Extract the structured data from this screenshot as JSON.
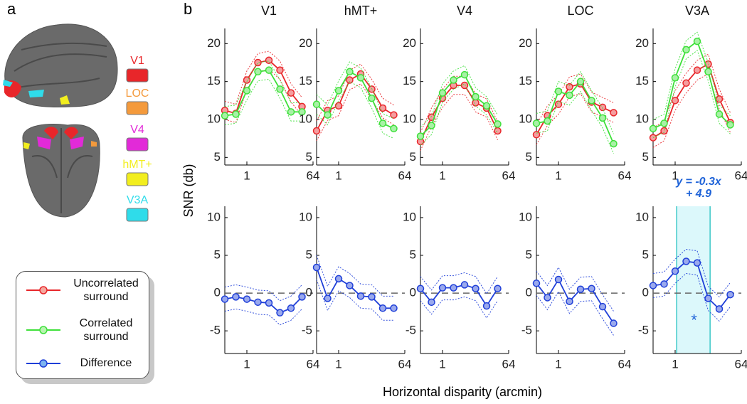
{
  "panel_a": {
    "label": "a",
    "rois": [
      {
        "name": "V1",
        "color": "#e8262a"
      },
      {
        "name": "LOC",
        "color": "#f49a3c"
      },
      {
        "name": "V4",
        "color": "#e22ad8"
      },
      {
        "name": "hMT+",
        "color": "#f2ee1e"
      },
      {
        "name": "V3A",
        "color": "#2fdcea"
      }
    ]
  },
  "figure": {
    "label": "b",
    "ylabel": "SNR (db)",
    "xlabel": "Horizontal disparity (arcmin)"
  },
  "chart_data": [
    {
      "type": "line",
      "title": "V1",
      "xscale": "log",
      "x": [
        0.25,
        0.5,
        1,
        2,
        4,
        8,
        16,
        32
      ],
      "xlim": [
        0.25,
        64
      ],
      "xticks": [
        1,
        64
      ],
      "ylim": [
        4,
        22
      ],
      "yticks": [
        5,
        10,
        15,
        20
      ],
      "series": [
        {
          "name": "Uncorrelated surround",
          "color": "#e8262a",
          "values": [
            11.2,
            10.8,
            15.2,
            17.5,
            17.8,
            16.5,
            13.5,
            11.7
          ],
          "error": [
            1.2,
            1.2,
            1.2,
            1.2,
            1.2,
            1.2,
            1.2,
            1.2
          ]
        },
        {
          "name": "Correlated surround",
          "color": "#3ee03a",
          "values": [
            10.5,
            10.7,
            13.8,
            16.3,
            16.5,
            14,
            11,
            11
          ],
          "error": [
            1.2,
            1.2,
            1.2,
            1.2,
            1.2,
            1.2,
            1.2,
            1.2
          ]
        }
      ]
    },
    {
      "type": "line",
      "title": "hMT+",
      "xscale": "log",
      "x": [
        0.25,
        0.5,
        1,
        2,
        4,
        8,
        16,
        32
      ],
      "xlim": [
        0.25,
        64
      ],
      "xticks": [
        1,
        64
      ],
      "ylim": [
        4,
        22
      ],
      "yticks": [
        5,
        10,
        15,
        20
      ],
      "series": [
        {
          "name": "Uncorrelated surround",
          "color": "#e8262a",
          "values": [
            8.5,
            11.2,
            11.8,
            15.2,
            16,
            14,
            11.5,
            10.6
          ],
          "error": [
            1.3,
            1.3,
            1.3,
            1.3,
            1.3,
            1.3,
            1.3,
            1.3
          ]
        },
        {
          "name": "Correlated surround",
          "color": "#3ee03a",
          "values": [
            12,
            10.6,
            13.8,
            16.3,
            15.5,
            12.8,
            9.5,
            8.8
          ],
          "error": [
            1.3,
            1.3,
            1.3,
            1.3,
            1.3,
            1.3,
            1.3,
            1.3
          ]
        }
      ]
    },
    {
      "type": "line",
      "title": "V4",
      "xscale": "log",
      "x": [
        0.25,
        0.5,
        1,
        2,
        4,
        8,
        16,
        32
      ],
      "xlim": [
        0.25,
        64
      ],
      "xticks": [
        1,
        64
      ],
      "ylim": [
        4,
        22
      ],
      "yticks": [
        5,
        10,
        15,
        20
      ],
      "series": [
        {
          "name": "Uncorrelated surround",
          "color": "#e8262a",
          "values": [
            7.1,
            10.3,
            12.8,
            14.5,
            14.5,
            12.2,
            11.5,
            8.5
          ],
          "error": [
            1.2,
            1.2,
            1.2,
            1.2,
            1.2,
            1.2,
            1.2,
            1.2
          ]
        },
        {
          "name": "Correlated surround",
          "color": "#3ee03a",
          "values": [
            7.8,
            9.2,
            13.5,
            15.2,
            15.9,
            13,
            11.8,
            9.4
          ],
          "error": [
            1.2,
            1.2,
            1.2,
            1.2,
            1.2,
            1.2,
            1.2,
            1.2
          ]
        }
      ]
    },
    {
      "type": "line",
      "title": "LOC",
      "xscale": "log",
      "x": [
        0.25,
        0.5,
        1,
        2,
        4,
        8,
        16,
        32
      ],
      "xlim": [
        0.25,
        64
      ],
      "xticks": [
        1,
        64
      ],
      "ylim": [
        4,
        22
      ],
      "yticks": [
        5,
        10,
        15,
        20
      ],
      "series": [
        {
          "name": "Uncorrelated surround",
          "color": "#e8262a",
          "values": [
            8,
            10.5,
            12,
            14.3,
            14.7,
            12.3,
            11.6,
            10.9
          ],
          "error": [
            1.3,
            1.3,
            1.3,
            1.3,
            1.3,
            1.3,
            1.3,
            1.3
          ]
        },
        {
          "name": "Correlated surround",
          "color": "#3ee03a",
          "values": [
            9.5,
            9.8,
            13.7,
            13.2,
            15,
            12.5,
            10.2,
            6.8
          ],
          "error": [
            1.3,
            1.3,
            1.3,
            1.3,
            1.3,
            1.3,
            1.3,
            1.3
          ]
        }
      ]
    },
    {
      "type": "line",
      "title": "V3A",
      "xscale": "log",
      "x": [
        0.25,
        0.5,
        1,
        2,
        4,
        8,
        16,
        32
      ],
      "xlim": [
        0.25,
        64
      ],
      "xticks": [
        1,
        64
      ],
      "ylim": [
        4,
        22
      ],
      "yticks": [
        5,
        10,
        15,
        20
      ],
      "series": [
        {
          "name": "Uncorrelated surround",
          "color": "#e8262a",
          "values": [
            7.6,
            8.5,
            12.5,
            14.8,
            16.5,
            17.3,
            12.7,
            9.6
          ],
          "error": [
            1.3,
            1.3,
            1.3,
            1.3,
            1.3,
            1.3,
            1.3,
            1.3
          ]
        },
        {
          "name": "Correlated surround",
          "color": "#3ee03a",
          "values": [
            8.8,
            9.5,
            15.5,
            19.2,
            20.3,
            16.3,
            10.7,
            9.3
          ],
          "error": [
            1.2,
            1.2,
            1.2,
            1.2,
            1.2,
            1.2,
            1.2,
            1.2
          ]
        }
      ]
    },
    {
      "type": "line",
      "xscale": "log",
      "x": [
        0.25,
        0.5,
        1,
        2,
        4,
        8,
        16,
        32
      ],
      "xlim": [
        0.25,
        64
      ],
      "xticks": [
        1,
        64
      ],
      "ylim": [
        -8,
        11.5
      ],
      "yticks": [
        -5,
        0,
        5,
        10
      ],
      "zero_line": true,
      "series": [
        {
          "name": "Difference",
          "color": "#1f3fd8",
          "values": [
            -0.8,
            -0.5,
            -0.8,
            -1.2,
            -1.3,
            -2.6,
            -2,
            -0.5
          ],
          "error": [
            1.6,
            1.6,
            1.6,
            1.6,
            1.6,
            1.6,
            1.6,
            1.6
          ]
        }
      ]
    },
    {
      "type": "line",
      "xscale": "log",
      "x": [
        0.25,
        0.5,
        1,
        2,
        4,
        8,
        16,
        32
      ],
      "xlim": [
        0.25,
        64
      ],
      "xticks": [
        1,
        64
      ],
      "ylim": [
        -8,
        11.5
      ],
      "yticks": [
        -5,
        0,
        5,
        10
      ],
      "zero_line": true,
      "series": [
        {
          "name": "Difference",
          "color": "#1f3fd8",
          "values": [
            3.4,
            -0.7,
            1.9,
            1,
            -0.4,
            -0.5,
            -2,
            -2
          ],
          "error": [
            1.6,
            1.6,
            1.6,
            1.6,
            1.6,
            1.6,
            1.6,
            1.6
          ]
        }
      ]
    },
    {
      "type": "line",
      "xscale": "log",
      "x": [
        0.25,
        0.5,
        1,
        2,
        4,
        8,
        16,
        32
      ],
      "xlim": [
        0.25,
        64
      ],
      "xticks": [
        1,
        64
      ],
      "ylim": [
        -8,
        11.5
      ],
      "yticks": [
        -5,
        0,
        5,
        10
      ],
      "zero_line": true,
      "series": [
        {
          "name": "Difference",
          "color": "#1f3fd8",
          "values": [
            0.6,
            -1.2,
            0.7,
            0.7,
            1.1,
            0.6,
            -1.7,
            0.6
          ],
          "error": [
            1.6,
            1.6,
            1.6,
            1.6,
            1.6,
            1.6,
            1.6,
            1.6
          ]
        }
      ]
    },
    {
      "type": "line",
      "xscale": "log",
      "x": [
        0.25,
        0.5,
        1,
        2,
        4,
        8,
        16,
        32
      ],
      "xlim": [
        0.25,
        64
      ],
      "xticks": [
        1,
        64
      ],
      "ylim": [
        -8,
        11.5
      ],
      "yticks": [
        -5,
        0,
        5,
        10
      ],
      "zero_line": true,
      "series": [
        {
          "name": "Difference",
          "color": "#1f3fd8",
          "values": [
            1.3,
            -0.6,
            1.8,
            -1.1,
            0.5,
            0.6,
            -1.8,
            -4
          ],
          "error": [
            1.6,
            1.6,
            1.6,
            1.6,
            1.6,
            1.6,
            1.6,
            1.6
          ]
        }
      ]
    },
    {
      "type": "line",
      "xscale": "log",
      "x": [
        0.25,
        0.5,
        1,
        2,
        4,
        8,
        16,
        32
      ],
      "xlim": [
        0.25,
        64
      ],
      "xticks": [
        1,
        64
      ],
      "ylim": [
        -8,
        11.5
      ],
      "yticks": [
        -5,
        0,
        5,
        10
      ],
      "zero_line": true,
      "highlight_x": [
        1.1,
        9
      ],
      "annotation": [
        "y = -0.3x",
        "+ 4.9"
      ],
      "significance": "*",
      "series": [
        {
          "name": "Difference",
          "color": "#1f3fd8",
          "values": [
            1,
            1.2,
            2.9,
            4.2,
            4,
            -0.7,
            -2.1,
            -0.2
          ],
          "error": [
            1.6,
            1.6,
            1.6,
            1.6,
            1.6,
            1.6,
            1.6,
            1.6
          ]
        }
      ]
    }
  ]
}
